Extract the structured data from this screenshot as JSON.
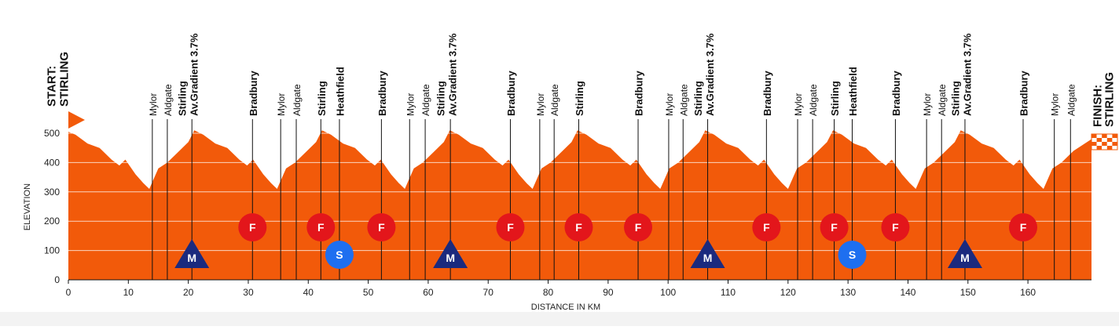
{
  "chart_data": {
    "type": "area",
    "color": "#f25a0a",
    "xlabel": "DISTANCE IN KM",
    "ylabel": "ELEVATION",
    "xlim": [
      0,
      170.6
    ],
    "ylim": [
      0,
      500
    ],
    "xticks": [
      0,
      10,
      20,
      30,
      40,
      50,
      60,
      70,
      80,
      90,
      100,
      110,
      120,
      130,
      140,
      150,
      160
    ],
    "yticks": [
      0,
      100,
      200,
      300,
      400,
      500
    ],
    "grid": true,
    "start": [
      "START:",
      "STIRLING"
    ],
    "finish": [
      "FINISH:",
      "STIRLING"
    ],
    "x": [
      0,
      1.2,
      3.2,
      5.2,
      7.2,
      8.5,
      9.5,
      11.2,
      12.5,
      13.5,
      15,
      16.5,
      18.5,
      20,
      21,
      22.5,
      24.5,
      26.5,
      28.5,
      29.8,
      30.8,
      32.5,
      33.8,
      34.8,
      36.3,
      37.8,
      39.8,
      41.3,
      42.3,
      43.8,
      45.8,
      47.8,
      49.8,
      51.1,
      52.1,
      53.8,
      55.1,
      56.1,
      57.6,
      59.1,
      61.1,
      62.6,
      63.6,
      65.1,
      67.1,
      69.1,
      71.1,
      72.4,
      73.4,
      75.1,
      76.4,
      77.4,
      78.9,
      80.4,
      82.4,
      83.9,
      84.9,
      86.4,
      88.4,
      90.4,
      92.4,
      93.7,
      94.7,
      96.4,
      97.7,
      98.7,
      100.2,
      101.7,
      103.7,
      105.2,
      106.2,
      107.7,
      109.7,
      111.7,
      113.7,
      115,
      116,
      117.7,
      119,
      120,
      121.5,
      123,
      125,
      126.5,
      127.5,
      129,
      131,
      133,
      135,
      136.3,
      137.3,
      139,
      140.3,
      141.3,
      142.8,
      144.3,
      146.3,
      147.8,
      148.8,
      150.3,
      152.3,
      154.3,
      156.3,
      157.6,
      158.6,
      160.3,
      161.6,
      162.6,
      164.1,
      165.6,
      167.6,
      169.1,
      170.6
    ],
    "values": [
      505,
      495,
      465,
      450,
      410,
      390,
      410,
      360,
      330,
      310,
      380,
      400,
      440,
      470,
      510,
      495,
      465,
      450,
      410,
      390,
      410,
      360,
      330,
      310,
      380,
      400,
      440,
      470,
      510,
      495,
      465,
      450,
      410,
      390,
      410,
      360,
      330,
      310,
      380,
      400,
      440,
      470,
      510,
      495,
      465,
      450,
      410,
      390,
      410,
      360,
      330,
      310,
      380,
      400,
      440,
      470,
      510,
      495,
      465,
      450,
      410,
      390,
      410,
      360,
      330,
      310,
      380,
      400,
      440,
      470,
      510,
      495,
      465,
      450,
      410,
      390,
      410,
      360,
      330,
      310,
      380,
      400,
      440,
      470,
      510,
      495,
      465,
      450,
      410,
      390,
      410,
      360,
      330,
      310,
      380,
      400,
      440,
      470,
      510,
      495,
      465,
      450,
      410,
      390,
      410,
      360,
      330,
      310,
      380,
      400,
      440,
      460,
      480
    ],
    "places": [
      {
        "x": 14.0,
        "lines": [
          "Mylor"
        ],
        "bold": false
      },
      {
        "x": 16.5,
        "lines": [
          "Aldgate"
        ],
        "bold": false
      },
      {
        "x": 20.6,
        "lines": [
          "Stirling",
          "Av.Gradient 3.7%"
        ],
        "bold": true
      },
      {
        "x": 30.7,
        "lines": [
          "Bradbury"
        ],
        "bold": true
      },
      {
        "x": 35.4,
        "lines": [
          "Mylor"
        ],
        "bold": false
      },
      {
        "x": 38.0,
        "lines": [
          "Aldgate"
        ],
        "bold": false
      },
      {
        "x": 42.1,
        "lines": [
          "Stirling"
        ],
        "bold": true
      },
      {
        "x": 45.2,
        "lines": [
          "Heathfield"
        ],
        "bold": true
      },
      {
        "x": 52.2,
        "lines": [
          "Bradbury"
        ],
        "bold": true
      },
      {
        "x": 56.9,
        "lines": [
          "Mylor"
        ],
        "bold": false
      },
      {
        "x": 59.5,
        "lines": [
          "Aldgate"
        ],
        "bold": false
      },
      {
        "x": 63.7,
        "lines": [
          "Stirling",
          "Av.Gradient 3.7%"
        ],
        "bold": true
      },
      {
        "x": 73.7,
        "lines": [
          "Bradbury"
        ],
        "bold": true
      },
      {
        "x": 78.6,
        "lines": [
          "Mylor"
        ],
        "bold": false
      },
      {
        "x": 81.0,
        "lines": [
          "Aldgate"
        ],
        "bold": false
      },
      {
        "x": 85.1,
        "lines": [
          "Stirling"
        ],
        "bold": true
      },
      {
        "x": 95.0,
        "lines": [
          "Bradbury"
        ],
        "bold": true
      },
      {
        "x": 100.1,
        "lines": [
          "Mylor"
        ],
        "bold": false
      },
      {
        "x": 102.5,
        "lines": [
          "Aldgate"
        ],
        "bold": false
      },
      {
        "x": 106.6,
        "lines": [
          "Stirling",
          "Av.Gradient 3.7%"
        ],
        "bold": true
      },
      {
        "x": 116.4,
        "lines": [
          "Bradbury"
        ],
        "bold": true
      },
      {
        "x": 121.6,
        "lines": [
          "Mylor"
        ],
        "bold": false
      },
      {
        "x": 124.1,
        "lines": [
          "Aldgate"
        ],
        "bold": false
      },
      {
        "x": 127.7,
        "lines": [
          "Stirling"
        ],
        "bold": true
      },
      {
        "x": 130.7,
        "lines": [
          "Heathfield"
        ],
        "bold": true
      },
      {
        "x": 137.9,
        "lines": [
          "Bradbury"
        ],
        "bold": true
      },
      {
        "x": 143.1,
        "lines": [
          "Mylor"
        ],
        "bold": false
      },
      {
        "x": 145.6,
        "lines": [
          "Aldgate"
        ],
        "bold": false
      },
      {
        "x": 149.5,
        "lines": [
          "Stirling",
          "Av.Gradient 3.7%"
        ],
        "bold": true
      },
      {
        "x": 159.2,
        "lines": [
          "Bradbury"
        ],
        "bold": true
      },
      {
        "x": 164.4,
        "lines": [
          "Mylor"
        ],
        "bold": false
      },
      {
        "x": 167.1,
        "lines": [
          "Aldgate"
        ],
        "bold": false
      }
    ],
    "markers": [
      {
        "label": "M",
        "x": 20.6
      },
      {
        "label": "F",
        "x": 30.7
      },
      {
        "label": "F",
        "x": 42.1
      },
      {
        "label": "S",
        "x": 45.2
      },
      {
        "label": "F",
        "x": 52.2
      },
      {
        "label": "M",
        "x": 63.7
      },
      {
        "label": "F",
        "x": 73.7
      },
      {
        "label": "F",
        "x": 85.1
      },
      {
        "label": "F",
        "x": 95.0
      },
      {
        "label": "M",
        "x": 106.6
      },
      {
        "label": "F",
        "x": 116.4
      },
      {
        "label": "F",
        "x": 127.7
      },
      {
        "label": "S",
        "x": 130.7
      },
      {
        "label": "F",
        "x": 137.9
      },
      {
        "label": "M",
        "x": 149.5
      },
      {
        "label": "F",
        "x": 159.2
      }
    ],
    "marker_colors": {
      "F": "#e3161b",
      "S": "#1e6ff0",
      "M": "#1b2a7e"
    }
  }
}
